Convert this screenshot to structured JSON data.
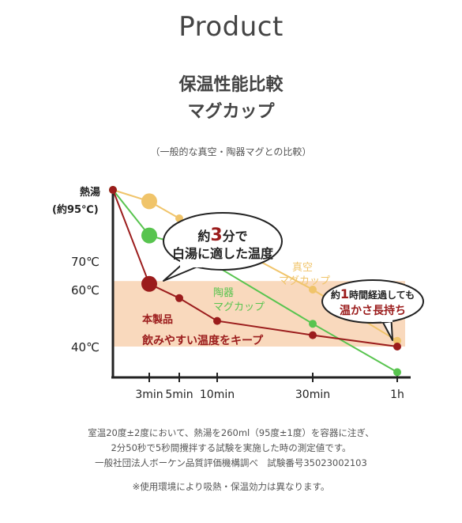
{
  "page": {
    "title": "Product",
    "heading_line1": "保温性能比較",
    "heading_line2": "マグカップ",
    "subtitle": "（一般的な真空・陶器マグとの比較）",
    "footnotes": [
      "室温20度±2度において、熱湯を260ml（95度±1度）を容器に注ぎ、",
      "2分50秒で5秒間攪拌する試験を実施した時の測定値です。",
      "一般社団法人ボーケン品質評価機構調べ　試験番号35023002103",
      "※使用環境により吸熱・保温効力は異なります。"
    ]
  },
  "chart_data": {
    "type": "line",
    "x_tick_labels": [
      "3min",
      "5min",
      "10min",
      "30min",
      "1h"
    ],
    "x_ticks": [
      3,
      5,
      10,
      30,
      60
    ],
    "y_tick_labels": [
      "70℃",
      "60℃",
      "40℃"
    ],
    "y_label_line1": "熱湯",
    "y_label_line2": "(約95℃)",
    "comfort_band": {
      "from": 40,
      "to": 63,
      "label": "飲みやすい温度をキープ",
      "color": "#f9d9bd"
    },
    "series": [
      {
        "name": "真空 マグカップ",
        "name_line1": "真空",
        "name_line2": "マグカップ",
        "color": "#f0c46a",
        "points": [
          [
            0,
            95
          ],
          [
            3,
            91
          ],
          [
            5,
            85
          ],
          [
            30,
            60
          ],
          [
            60,
            42
          ]
        ]
      },
      {
        "name": "陶器 マグカップ",
        "name_line1": "陶器",
        "name_line2": "マグカップ",
        "color": "#58c44f",
        "points": [
          [
            0,
            95
          ],
          [
            3,
            79
          ],
          [
            5,
            76
          ],
          [
            30,
            48
          ],
          [
            60,
            31
          ]
        ]
      },
      {
        "name": "本製品",
        "name_line1": "本製品",
        "color": "#9b1c1c",
        "points": [
          [
            0,
            95
          ],
          [
            3,
            62
          ],
          [
            5,
            57
          ],
          [
            10,
            49
          ],
          [
            30,
            44
          ],
          [
            60,
            40
          ]
        ]
      }
    ],
    "callouts": [
      {
        "pre": "約",
        "num": "3",
        "post": "分で",
        "line2": "白湯に適した温度"
      },
      {
        "pre": "約",
        "num": "1",
        "post": "時間経過しても",
        "line2": "温かさ長持ち"
      }
    ]
  }
}
